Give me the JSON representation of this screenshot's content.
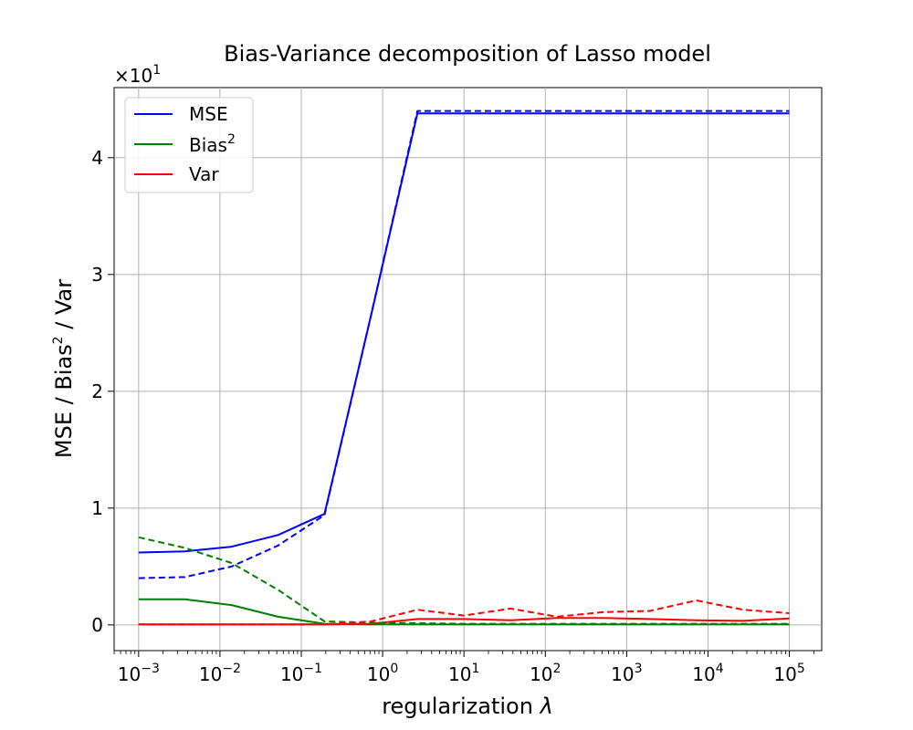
{
  "chart_data": {
    "type": "line",
    "title": "Bias-Variance decomposition of Lasso model",
    "xlabel": "regularization",
    "xlabel_symbol": "λ",
    "ylabel": "MSE / Bias",
    "ylabel_sup": "2",
    "ylabel_suffix": " / Var",
    "xscale": "log",
    "xlim": [
      0.0005,
      250000
    ],
    "ylim": [
      -2.2,
      46.0
    ],
    "y_multiplier": "×10",
    "y_multiplier_exp": "1",
    "grid": true,
    "legend_position": "upper-left",
    "x_ticks": [
      {
        "base": "10",
        "exp": "−3",
        "value": 0.001
      },
      {
        "base": "10",
        "exp": "−2",
        "value": 0.01
      },
      {
        "base": "10",
        "exp": "−1",
        "value": 0.1
      },
      {
        "base": "10",
        "exp": "0",
        "value": 1
      },
      {
        "base": "10",
        "exp": "1",
        "value": 10
      },
      {
        "base": "10",
        "exp": "2",
        "value": 100
      },
      {
        "base": "10",
        "exp": "3",
        "value": 1000
      },
      {
        "base": "10",
        "exp": "4",
        "value": 10000
      },
      {
        "base": "10",
        "exp": "5",
        "value": 100000
      }
    ],
    "y_ticks": [
      {
        "label": "0",
        "value": 0
      },
      {
        "label": "1",
        "value": 10
      },
      {
        "label": "2",
        "value": 20
      },
      {
        "label": "3",
        "value": 30
      },
      {
        "label": "4",
        "value": 40
      }
    ],
    "x": [
      0.001,
      0.0037,
      0.0139,
      0.0518,
      0.193,
      0.72,
      2.68,
      10,
      37.3,
      139,
      518,
      1930,
      7200,
      26800,
      100000
    ],
    "series": [
      {
        "name": "MSE",
        "color": "#0000ff",
        "dashed": false,
        "values": [
          6.2,
          6.3,
          6.7,
          7.7,
          9.5,
          26.5,
          43.8,
          43.8,
          43.8,
          43.8,
          43.8,
          43.8,
          43.8,
          43.8,
          43.8
        ]
      },
      {
        "name": "Bias",
        "name_sup": "2",
        "color": "#008000",
        "dashed": false,
        "values": [
          2.2,
          2.2,
          1.7,
          0.7,
          0.1,
          0.05,
          0.05,
          0.05,
          0.05,
          0.05,
          0.05,
          0.05,
          0.05,
          0.05,
          0.05
        ]
      },
      {
        "name": "Var",
        "color": "#ff0000",
        "dashed": false,
        "values": [
          0.05,
          0.05,
          0.05,
          0.05,
          0.05,
          0.1,
          0.5,
          0.5,
          0.4,
          0.6,
          0.6,
          0.5,
          0.4,
          0.35,
          0.55
        ]
      },
      {
        "color": "#0000ff",
        "dashed": true,
        "values": [
          4.0,
          4.1,
          5.0,
          6.8,
          9.4,
          26.5,
          44.0,
          44.0,
          44.0,
          44.0,
          44.0,
          44.0,
          44.0,
          44.0,
          44.0
        ]
      },
      {
        "color": "#008000",
        "dashed": true,
        "values": [
          7.5,
          6.6,
          5.3,
          3.0,
          0.3,
          0.2,
          0.15,
          0.1,
          0.1,
          0.1,
          0.1,
          0.1,
          0.1,
          0.1,
          0.1
        ]
      },
      {
        "color": "#ff0000",
        "dashed": true,
        "values": [
          0.05,
          0.05,
          0.05,
          0.05,
          0.05,
          0.3,
          1.3,
          0.8,
          1.4,
          0.7,
          1.1,
          1.2,
          2.1,
          1.3,
          1.0
        ]
      }
    ]
  }
}
